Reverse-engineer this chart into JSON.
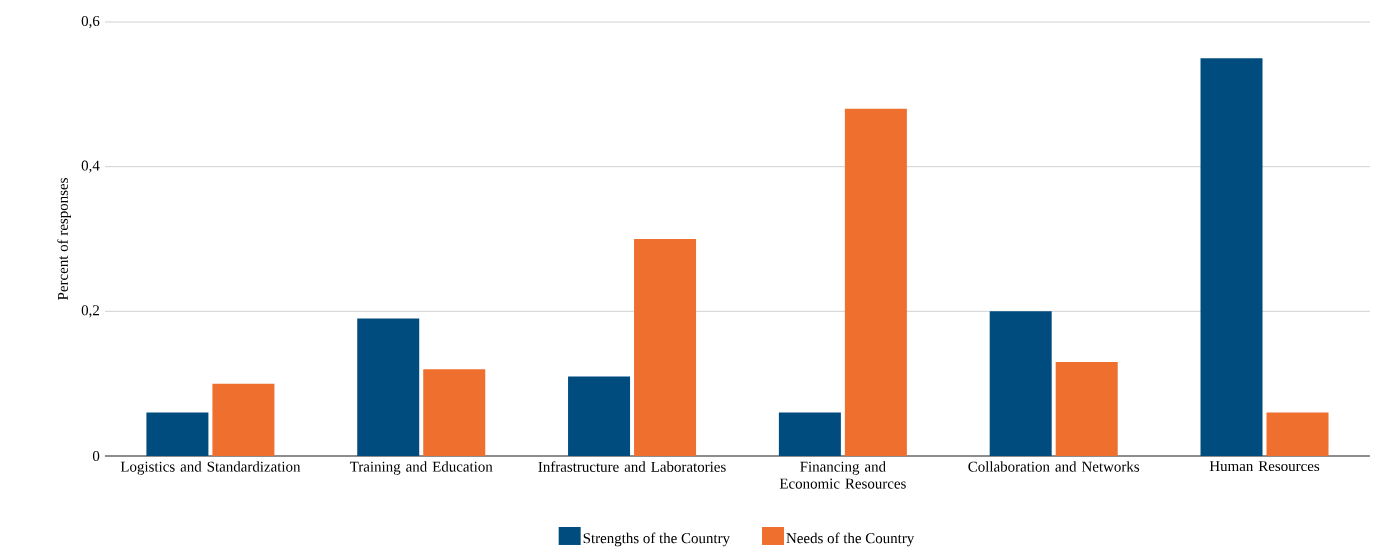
{
  "chart_data": {
    "type": "bar",
    "ylabel": "Percent of responses",
    "categories": [
      "Logistics and Standardization",
      "Training and Education",
      "Infrastructure and Laboratories",
      "Financing and Economic Resources",
      "Collaboration and Networks",
      "Human Resources"
    ],
    "series": [
      {
        "name": "Strengths of the Country",
        "color": "#004c7f",
        "values": [
          0.06,
          0.19,
          0.11,
          0.06,
          0.2,
          0.55
        ]
      },
      {
        "name": "Needs of the Country",
        "color": "#ef6f2e",
        "values": [
          0.1,
          0.12,
          0.3,
          0.48,
          0.13,
          0.06
        ]
      }
    ],
    "ylim": [
      0,
      0.6
    ],
    "yticks": [
      0,
      {
        "value": 0.2,
        "label": "0,2"
      },
      {
        "value": 0.4,
        "label": "0,4"
      },
      {
        "value": 0.6,
        "label": "0,6"
      }
    ],
    "grid": "y",
    "legend": "bottom"
  }
}
